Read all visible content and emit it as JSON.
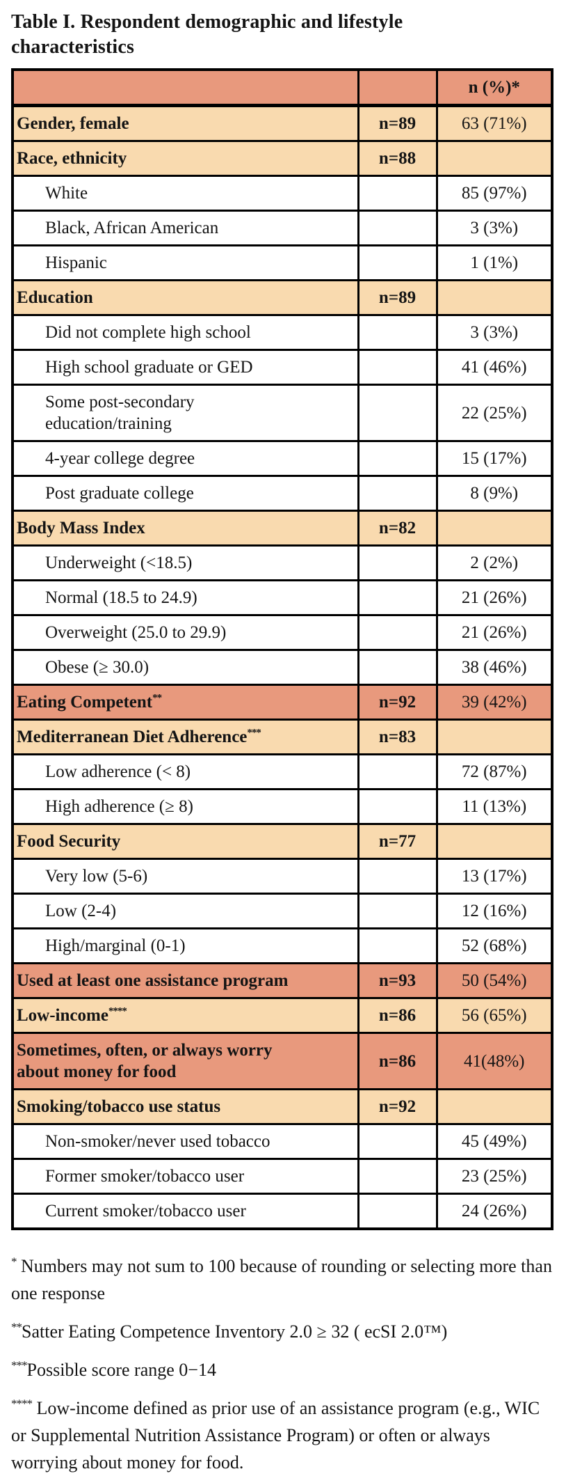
{
  "title": "Table I. Respondent demographic and lifestyle\ncharacteristics",
  "colors": {
    "salmon": "#E8997D",
    "peach": "#F9DAAF"
  },
  "table": {
    "header": {
      "col1": "",
      "col2": "",
      "col3": "n (%)*"
    },
    "rows": [
      {
        "label": "Gender, female",
        "sup": "",
        "n": "n=89",
        "value": "63 (71%)",
        "style": "peach",
        "bold": true,
        "indent": false
      },
      {
        "label": "Race, ethnicity",
        "sup": "",
        "n": "n=88",
        "value": "",
        "style": "peach",
        "bold": true,
        "indent": false
      },
      {
        "label": "White",
        "sup": "",
        "n": "",
        "value": "85 (97%)",
        "style": "white",
        "bold": false,
        "indent": true
      },
      {
        "label": "Black, African American",
        "sup": "",
        "n": "",
        "value": "3 (3%)",
        "style": "white",
        "bold": false,
        "indent": true
      },
      {
        "label": "Hispanic",
        "sup": "",
        "n": "",
        "value": "1 (1%)",
        "style": "white",
        "bold": false,
        "indent": true
      },
      {
        "label": "Education",
        "sup": "",
        "n": "n=89",
        "value": "",
        "style": "peach",
        "bold": true,
        "indent": false
      },
      {
        "label": "Did not complete high school",
        "sup": "",
        "n": "",
        "value": "3 (3%)",
        "style": "white",
        "bold": false,
        "indent": true
      },
      {
        "label": "High school graduate or GED",
        "sup": "",
        "n": "",
        "value": "41 (46%)",
        "style": "white",
        "bold": false,
        "indent": true
      },
      {
        "label": "Some post-secondary\neducation/training",
        "sup": "",
        "n": "",
        "value": "22 (25%)",
        "style": "white",
        "bold": false,
        "indent": true
      },
      {
        "label": "4-year college degree",
        "sup": "",
        "n": "",
        "value": "15 (17%)",
        "style": "white",
        "bold": false,
        "indent": true
      },
      {
        "label": "Post graduate college",
        "sup": "",
        "n": "",
        "value": "8 (9%)",
        "style": "white",
        "bold": false,
        "indent": true
      },
      {
        "label": "Body Mass Index",
        "sup": "",
        "n": "n=82",
        "value": "",
        "style": "peach",
        "bold": true,
        "indent": false
      },
      {
        "label": "Underweight (<18.5)",
        "sup": "",
        "n": "",
        "value": "2 (2%)",
        "style": "white",
        "bold": false,
        "indent": true
      },
      {
        "label": "Normal (18.5 to 24.9)",
        "sup": "",
        "n": "",
        "value": "21 (26%)",
        "style": "white",
        "bold": false,
        "indent": true
      },
      {
        "label": "Overweight (25.0 to 29.9)",
        "sup": "",
        "n": "",
        "value": "21 (26%)",
        "style": "white",
        "bold": false,
        "indent": true
      },
      {
        "label": "Obese (≥ 30.0)",
        "sup": "",
        "n": "",
        "value": "38 (46%)",
        "style": "white",
        "bold": false,
        "indent": true
      },
      {
        "label": "Eating Competent",
        "sup": "**",
        "n": "n=92",
        "value": "39 (42%)",
        "style": "salmon",
        "bold": true,
        "indent": false
      },
      {
        "label": "Mediterranean Diet Adherence",
        "sup": "***",
        "n": "n=83",
        "value": "",
        "style": "peach",
        "bold": true,
        "indent": false
      },
      {
        "label": "Low adherence (< 8)",
        "sup": "",
        "n": "",
        "value": "72 (87%)",
        "style": "white",
        "bold": false,
        "indent": true
      },
      {
        "label": "High adherence (≥ 8)",
        "sup": "",
        "n": "",
        "value": "11 (13%)",
        "style": "white",
        "bold": false,
        "indent": true
      },
      {
        "label": "Food Security",
        "sup": "",
        "n": "n=77",
        "value": "",
        "style": "peach",
        "bold": true,
        "indent": false
      },
      {
        "label": "Very low (5-6)",
        "sup": "",
        "n": "",
        "value": "13 (17%)",
        "style": "white",
        "bold": false,
        "indent": true
      },
      {
        "label": "Low (2-4)",
        "sup": "",
        "n": "",
        "value": "12 (16%)",
        "style": "white",
        "bold": false,
        "indent": true
      },
      {
        "label": "High/marginal (0-1)",
        "sup": "",
        "n": "",
        "value": "52 (68%)",
        "style": "white",
        "bold": false,
        "indent": true
      },
      {
        "label": "Used at least one assistance program",
        "sup": "",
        "n": "n=93",
        "value": "50 (54%)",
        "style": "salmon",
        "bold": true,
        "indent": false
      },
      {
        "label": "Low-income",
        "sup": "****",
        "n": "n=86",
        "value": "56 (65%)",
        "style": "peach",
        "bold": true,
        "indent": false
      },
      {
        "label": "Sometimes, often, or always worry\nabout money for food",
        "sup": "",
        "n": "n=86",
        "value": "41(48%)",
        "style": "salmon",
        "bold": true,
        "indent": false
      },
      {
        "label": "Smoking/tobacco use status",
        "sup": "",
        "n": "n=92",
        "value": "",
        "style": "peach",
        "bold": true,
        "indent": false
      },
      {
        "label": "Non-smoker/never used tobacco",
        "sup": "",
        "n": "",
        "value": "45 (49%)",
        "style": "white",
        "bold": false,
        "indent": true
      },
      {
        "label": "Former smoker/tobacco user",
        "sup": "",
        "n": "",
        "value": "23 (25%)",
        "style": "white",
        "bold": false,
        "indent": true
      },
      {
        "label": "Current smoker/tobacco user",
        "sup": "",
        "n": "",
        "value": "24 (26%)",
        "style": "white",
        "bold": false,
        "indent": true
      }
    ]
  },
  "footnotes": [
    {
      "marker": "*",
      "text": " Numbers may not sum to 100 because of rounding or selecting more than one response"
    },
    {
      "marker": "**",
      "text": "Satter Eating Competence Inventory 2.0 ≥ 32 ( ecSI 2.0™)"
    },
    {
      "marker": "***",
      "text": "Possible score range 0−14"
    },
    {
      "marker": "****",
      "text": " Low-income defined as prior use of an assistance program (e.g., WIC or Supplemental Nutrition Assistance Program) or often or always worrying about money for food."
    }
  ]
}
